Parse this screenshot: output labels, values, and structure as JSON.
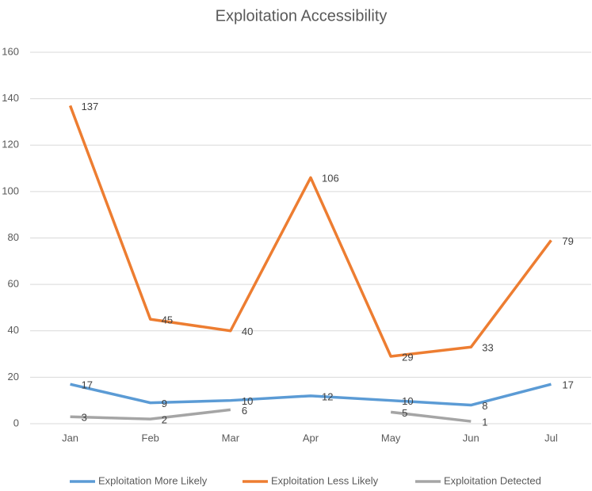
{
  "chart_data": {
    "type": "line",
    "title": "Exploitation Accessibility",
    "categories": [
      "Jan",
      "Feb",
      "Mar",
      "Apr",
      "May",
      "Jun",
      "Jul"
    ],
    "series": [
      {
        "name": "Exploitation More Likely",
        "color": "#5b9bd5",
        "values": [
          17,
          9,
          10,
          12,
          10,
          8,
          17
        ]
      },
      {
        "name": "Exploitation Less Likely",
        "color": "#ed7d31",
        "values": [
          137,
          45,
          40,
          106,
          29,
          33,
          79
        ]
      },
      {
        "name": "Exploitation Detected",
        "color": "#a5a5a5",
        "values": [
          3,
          2,
          6,
          null,
          5,
          1,
          null
        ]
      }
    ],
    "ylim": [
      0,
      160
    ],
    "yticks": [
      0,
      20,
      40,
      60,
      80,
      100,
      120,
      140,
      160
    ],
    "grid": true,
    "legend": "bottom"
  }
}
